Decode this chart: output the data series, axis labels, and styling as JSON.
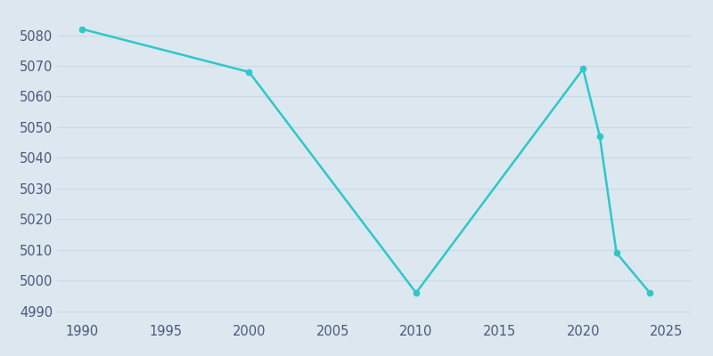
{
  "years": [
    1990,
    2000,
    2010,
    2020,
    2021,
    2022,
    2024
  ],
  "population": [
    5082,
    5068,
    4996,
    5069,
    5047,
    5009,
    4996
  ],
  "line_color": "#2ec8c8",
  "marker_color": "#2ec8c8",
  "bg_color": "#dce7f0",
  "axes_bg_color": "#dce7f0",
  "grid_color": "#c8d9e8",
  "tick_color": "#4a5a7a",
  "xlim": [
    1988.5,
    2026.5
  ],
  "ylim": [
    4987,
    5088
  ],
  "yticks": [
    4990,
    5000,
    5010,
    5020,
    5030,
    5040,
    5050,
    5060,
    5070,
    5080
  ],
  "xticks": [
    1990,
    1995,
    2000,
    2005,
    2010,
    2015,
    2020,
    2025
  ],
  "figsize": [
    8.0,
    4.0
  ],
  "dpi": 100,
  "tick_fontsize": 10.5,
  "linewidth": 1.8,
  "markersize": 4.5
}
